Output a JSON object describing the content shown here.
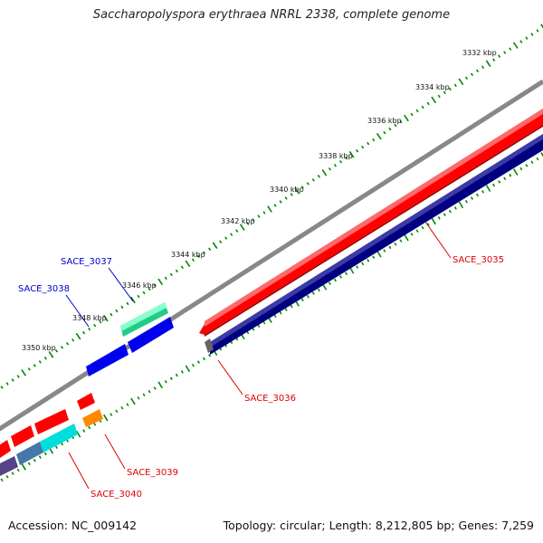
{
  "title": "Saccharopolyspora erythraea NRRL 2338, complete genome",
  "accession": "Accession: NC_009142",
  "summary": "Topology: circular; Length: 8,212,805 bp; Genes: 7,259",
  "ticks": [
    "3332 kbp",
    "3334 kbp",
    "3336 kbp",
    "3338 kbp",
    "3340 kbp",
    "3342 kbp",
    "3344 kbp",
    "3346 kbp",
    "3348 kbp",
    "3350 kbp"
  ],
  "genes": [
    {
      "name": "SACE_3035",
      "color": "#dd0000"
    },
    {
      "name": "SACE_3036",
      "color": "#dd0000"
    },
    {
      "name": "SACE_3037",
      "color": "#0000cc"
    },
    {
      "name": "SACE_3038",
      "color": "#0000cc"
    },
    {
      "name": "SACE_3039",
      "color": "#dd0000"
    },
    {
      "name": "SACE_3040",
      "color": "#dd0000"
    }
  ],
  "colors": {
    "forward": "#ff0000",
    "reverse": "#0000ee",
    "backbone": "#888888",
    "ruler": "#008800",
    "navy": "#000080",
    "green": "#33dd99",
    "cyan": "#00dddd",
    "orange": "#ff8800"
  }
}
